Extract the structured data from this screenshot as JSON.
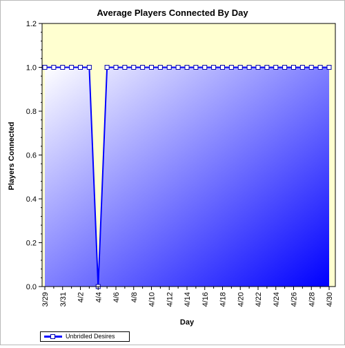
{
  "chart_data": {
    "type": "area",
    "title": "Average Players Connected By Day",
    "xlabel": "Day",
    "ylabel": "Players Connected",
    "ylim": [
      0,
      1.2
    ],
    "y_ticks": [
      "0.0",
      "0.2",
      "0.4",
      "0.6",
      "0.8",
      "1.0",
      "1.2"
    ],
    "y_tick_values": [
      0,
      0.2,
      0.4,
      0.6,
      0.8,
      1.0,
      1.2
    ],
    "x_tick_labels": [
      "3/29",
      "3/31",
      "4/2",
      "4/4",
      "4/6",
      "4/8",
      "4/10",
      "4/12",
      "4/14",
      "4/16",
      "4/18",
      "4/20",
      "4/22",
      "4/24",
      "4/26",
      "4/28",
      "4/30"
    ],
    "categories": [
      "3/29",
      "3/30",
      "3/31",
      "4/1",
      "4/2",
      "4/3",
      "4/4",
      "4/5",
      "4/6",
      "4/7",
      "4/8",
      "4/9",
      "4/10",
      "4/11",
      "4/12",
      "4/13",
      "4/14",
      "4/15",
      "4/16",
      "4/17",
      "4/18",
      "4/19",
      "4/20",
      "4/21",
      "4/22",
      "4/23",
      "4/24",
      "4/25",
      "4/26",
      "4/27",
      "4/28",
      "4/29",
      "4/30"
    ],
    "series": [
      {
        "name": "Unbridled Desires",
        "values": [
          1,
          1,
          1,
          1,
          1,
          1,
          0,
          1,
          1,
          1,
          1,
          1,
          1,
          1,
          1,
          1,
          1,
          1,
          1,
          1,
          1,
          1,
          1,
          1,
          1,
          1,
          1,
          1,
          1,
          1,
          1,
          1,
          1
        ]
      }
    ],
    "grid": false,
    "legend_position": "bottom-left",
    "colors": {
      "line": "#0000ff",
      "fill_start": "#ffffff",
      "fill_end": "#0000ff",
      "upper_band": "#ffffd0",
      "marker_fill": "#ffffff",
      "marker_stroke": "#0000aa"
    }
  }
}
